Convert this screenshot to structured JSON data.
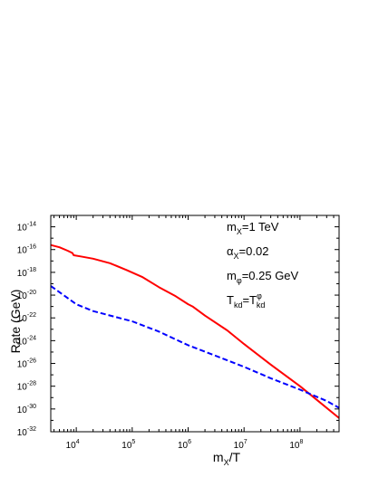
{
  "chart_data": {
    "type": "line",
    "title": "",
    "xlabel": {
      "main": "m",
      "sub": "X",
      "rest": "/T"
    },
    "ylabel": "Rate (GeV)",
    "xscale": "log",
    "yscale": "log",
    "xlim": [
      3500,
      500000000
    ],
    "ylim": [
      1e-32,
      1e-13
    ],
    "x_ticks": [
      {
        "base": "10",
        "exp": "4",
        "value": 10000
      },
      {
        "base": "10",
        "exp": "5",
        "value": 100000
      },
      {
        "base": "10",
        "exp": "6",
        "value": 1000000
      },
      {
        "base": "10",
        "exp": "7",
        "value": 10000000
      },
      {
        "base": "10",
        "exp": "8",
        "value": 100000000
      }
    ],
    "y_ticks": [
      {
        "base": "10",
        "exp": "-14",
        "value": -14
      },
      {
        "base": "10",
        "exp": "-16",
        "value": -16
      },
      {
        "base": "10",
        "exp": "-18",
        "value": -18
      },
      {
        "base": "10",
        "exp": "-20",
        "value": -20
      },
      {
        "base": "10",
        "exp": "-22",
        "value": -22
      },
      {
        "base": "10",
        "exp": "-24",
        "value": -24
      },
      {
        "base": "10",
        "exp": "-26",
        "value": -26
      },
      {
        "base": "10",
        "exp": "-28",
        "value": -28
      },
      {
        "base": "10",
        "exp": "-30",
        "value": -30
      },
      {
        "base": "10",
        "exp": "-32",
        "value": -32
      }
    ],
    "series": [
      {
        "style": "solid",
        "color": "#ff0000",
        "points": [
          [
            3500,
            -15.6
          ],
          [
            5000,
            -15.8
          ],
          [
            7000,
            -16.1
          ],
          [
            8500,
            -16.3
          ],
          [
            9000,
            -16.5
          ],
          [
            12000,
            -16.6
          ],
          [
            20000,
            -16.8
          ],
          [
            40000,
            -17.2
          ],
          [
            80000,
            -17.8
          ],
          [
            150000,
            -18.4
          ],
          [
            300000,
            -19.3
          ],
          [
            600000,
            -20.1
          ],
          [
            1000000,
            -20.8
          ],
          [
            1200000,
            -21.0
          ],
          [
            2000000,
            -21.8
          ],
          [
            5000000,
            -23.1
          ],
          [
            10000000,
            -24.3
          ],
          [
            30000000,
            -26.1
          ],
          [
            100000000,
            -28.0
          ],
          [
            200000000,
            -29.2
          ],
          [
            500000000,
            -30.8
          ]
        ]
      },
      {
        "style": "dashed",
        "color": "#0000ff",
        "points": [
          [
            3500,
            -19.2
          ],
          [
            10000,
            -20.8
          ],
          [
            20000,
            -21.4
          ],
          [
            100000,
            -22.3
          ],
          [
            300000,
            -23.2
          ],
          [
            1000000,
            -24.4
          ],
          [
            3000000,
            -25.3
          ],
          [
            10000000,
            -26.3
          ],
          [
            30000000,
            -27.3
          ],
          [
            100000000,
            -28.3
          ],
          [
            300000000,
            -29.3
          ],
          [
            500000000,
            -29.9
          ]
        ]
      }
    ],
    "annotations": [
      {
        "main": "m",
        "sub": "X",
        "rest": "=1 TeV"
      },
      {
        "main": "α",
        "sub": "X",
        "rest": "=0.02"
      },
      {
        "main": "m",
        "sub": "φ",
        "rest": "=0.25 GeV"
      },
      {
        "main": "T",
        "sub": "kd",
        "rest": "=T",
        "sup": "φ",
        "sub2": "kd"
      }
    ],
    "grid": false,
    "legend": "none"
  }
}
